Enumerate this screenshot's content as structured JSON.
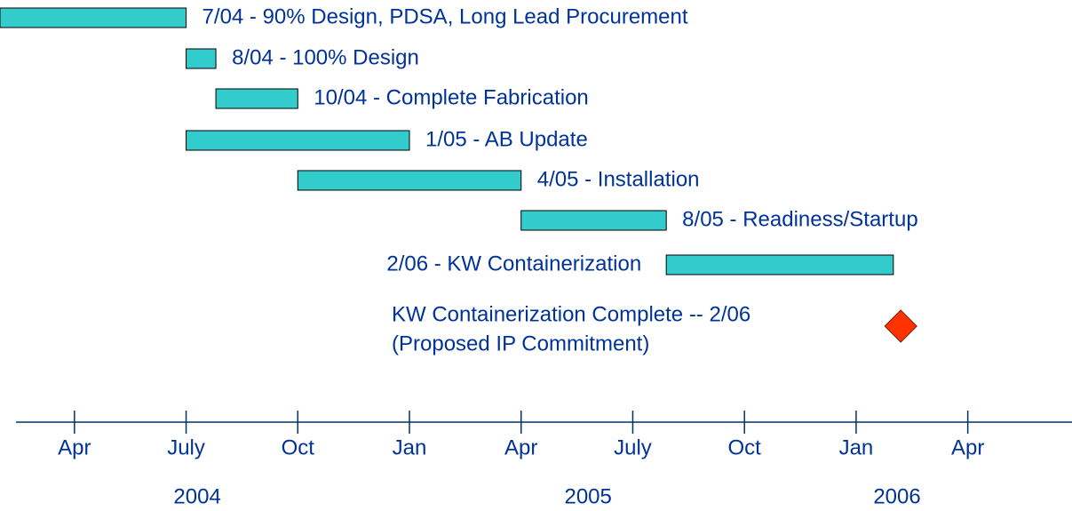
{
  "chart_data": {
    "type": "gantt",
    "bar_color": "#33cccc",
    "text_color": "#003399",
    "tasks": [
      {
        "label": "7/04 - 90% Design, PDSA, Long Lead Procurement",
        "start": 1.0,
        "end": 6.0,
        "label_position": "right"
      },
      {
        "label": "8/04 - 100% Design",
        "start": 6.0,
        "end": 6.8,
        "label_position": "right"
      },
      {
        "label": "10/04 - Complete Fabrication",
        "start": 6.8,
        "end": 9.0,
        "label_position": "right"
      },
      {
        "label": "1/05 - AB Update",
        "start": 6.0,
        "end": 12.0,
        "label_position": "right"
      },
      {
        "label": "4/05 - Installation",
        "start": 9.0,
        "end": 15.0,
        "label_position": "right"
      },
      {
        "label": "8/05 - Readiness/Startup",
        "start": 15.0,
        "end": 18.9,
        "label_position": "right"
      },
      {
        "label": "2/06 - KW Containerization",
        "start": 18.9,
        "end": 25.0,
        "label_position": "left"
      }
    ],
    "milestone": {
      "label": [
        "KW Containerization Complete -- 2/06",
        "(Proposed IP Commitment)"
      ],
      "date": 25.2,
      "color": "#ff3300"
    },
    "xlim": [
      1.0,
      29.8
    ],
    "xticks": [
      {
        "value": 3,
        "label": "Apr"
      },
      {
        "value": 6,
        "label": "July"
      },
      {
        "value": 9,
        "label": "Oct"
      },
      {
        "value": 12,
        "label": "Jan"
      },
      {
        "value": 15,
        "label": "Apr"
      },
      {
        "value": 18,
        "label": "July"
      },
      {
        "value": 21,
        "label": "Oct"
      },
      {
        "value": 24,
        "label": "Jan"
      },
      {
        "value": 27,
        "label": "Apr"
      }
    ],
    "year_labels": [
      {
        "value": 6.3,
        "label": "2004"
      },
      {
        "value": 16.8,
        "label": "2005"
      },
      {
        "value": 25.1,
        "label": "2006"
      }
    ]
  }
}
